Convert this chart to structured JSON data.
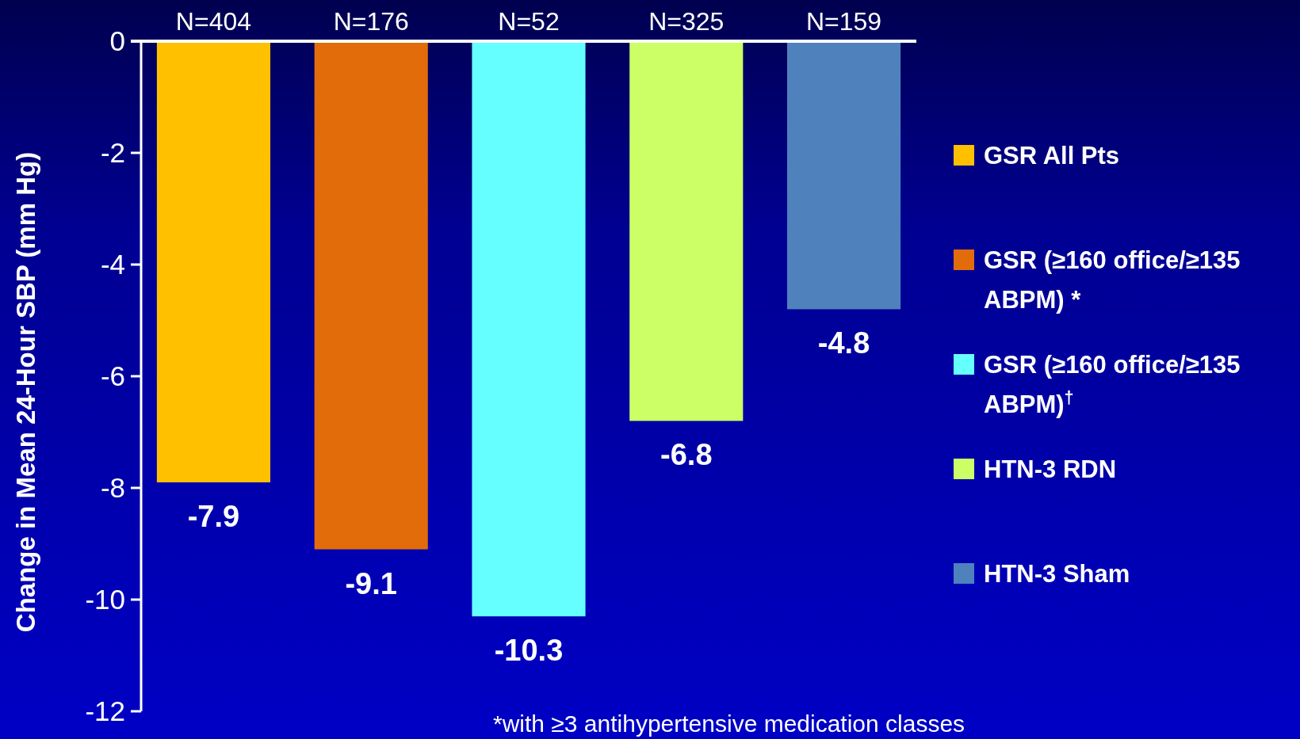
{
  "chart_data": {
    "type": "bar",
    "stacked": true,
    "ylabel": "Change in Mean 24-Hour SBP (mm Hg)",
    "categories": [
      "N=404",
      "N=176",
      "N=52",
      "N=325",
      "N=159"
    ],
    "series": [
      {
        "name": "GSR All Pts",
        "color": "#ffc000",
        "values": [
          -7.9,
          null,
          null,
          null,
          null
        ]
      },
      {
        "name": "GSR (≥160 office/≥135 ABPM) *",
        "color": "#e36c0a",
        "values": [
          null,
          -9.1,
          null,
          null,
          null
        ]
      },
      {
        "name": "GSR (≥160 office/≥135 ABPM)$^{†}$",
        "color": "#66ffff",
        "values": [
          null,
          null,
          -10.3,
          null,
          null
        ]
      },
      {
        "name": "HTN-3 RDN",
        "color": "#ccff66",
        "values": [
          null,
          null,
          null,
          -6.8,
          null
        ]
      },
      {
        "name": "HTN-3 Sham",
        "color": "#4f81bd",
        "values": [
          null,
          null,
          null,
          null,
          -4.8
        ]
      }
    ],
    "ylim": [
      -12,
      0
    ],
    "yticks": [
      0,
      -2,
      -4,
      -6,
      -8,
      -10,
      -12
    ],
    "data_labels": true,
    "legend": "right",
    "annotations": [
      "*with ≥3 antihypertensive medication classes"
    ]
  }
}
